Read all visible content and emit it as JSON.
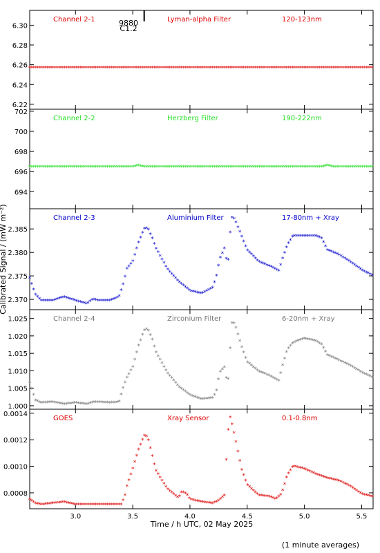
{
  "chart_data": {
    "type": "scatter",
    "xlabel": "Time / h UTC, 02 May 2025",
    "ylabel": "Calibrated Signal / (mW m⁻²)",
    "footnote": "(1 minute averages)",
    "xlim": [
      2.6,
      5.6
    ],
    "xticks": [
      3.0,
      3.5,
      4.0,
      4.5,
      5.0,
      5.5
    ],
    "xtick_labels": [
      "3.0",
      "3.5",
      "4.0",
      "4.5",
      "5.0",
      "5.5"
    ],
    "flare_marker": {
      "x": 3.6,
      "labels": [
        "9880",
        "C1.2"
      ]
    },
    "panels": [
      {
        "channel": "Channel 2-1",
        "filter": "Lyman-alpha Filter",
        "band": "120-123nm",
        "color": "#dd0000",
        "ylim": [
          6.215,
          6.315
        ],
        "yticks": [
          6.22,
          6.24,
          6.26,
          6.28,
          6.3
        ],
        "ytick_labels": [
          "6.22",
          "6.24",
          "6.26",
          "6.28",
          "6.30"
        ],
        "series_x": [
          2.6,
          5.6
        ],
        "series_y": [
          6.257,
          6.257
        ]
      },
      {
        "channel": "Channel 2-2",
        "filter": "Herzberg Filter",
        "band": "190-222nm",
        "color": "#22dd22",
        "ylim": [
          692.3,
          702.2
        ],
        "yticks": [
          694,
          696,
          698,
          700,
          702
        ],
        "ytick_labels": [
          "694",
          "696",
          "698",
          "700",
          "702"
        ],
        "series_x": [
          2.6,
          3.5,
          3.55,
          3.6,
          5.15,
          5.2,
          5.25,
          5.6
        ],
        "series_y": [
          696.45,
          696.45,
          696.6,
          696.45,
          696.45,
          696.6,
          696.45,
          696.45
        ]
      },
      {
        "channel": "Channel 2-3",
        "filter": "Aluminium Filter",
        "band": "17-80nm + Xray",
        "color": "#0000cc",
        "ylim": [
          2.3678,
          2.3893
        ],
        "yticks": [
          2.37,
          2.375,
          2.38,
          2.385
        ],
        "ytick_labels": [
          "2.370",
          "2.375",
          "2.380",
          "2.385"
        ],
        "series_x": [
          2.6,
          2.62,
          2.65,
          2.7,
          2.8,
          2.9,
          3.0,
          3.1,
          3.15,
          3.2,
          3.3,
          3.38,
          3.42,
          3.45,
          3.5,
          3.55,
          3.6,
          3.63,
          3.67,
          3.7,
          3.8,
          3.9,
          4.0,
          4.1,
          4.2,
          4.23,
          4.26,
          4.3,
          4.33,
          4.35,
          4.37,
          4.4,
          4.45,
          4.5,
          4.6,
          4.7,
          4.78,
          4.8,
          4.85,
          4.9,
          5.0,
          5.1,
          5.15,
          5.2,
          5.3,
          5.4,
          5.5,
          5.6
        ],
        "series_y": [
          2.3745,
          2.373,
          2.371,
          2.3697,
          2.3697,
          2.3705,
          2.3697,
          2.369,
          2.37,
          2.3697,
          2.3697,
          2.3705,
          2.3735,
          2.3765,
          2.378,
          2.382,
          2.385,
          2.3852,
          2.383,
          2.381,
          2.3765,
          2.3738,
          2.3718,
          2.3712,
          2.3725,
          2.3748,
          2.3785,
          2.3808,
          2.377,
          2.384,
          2.3878,
          2.3865,
          2.3835,
          2.3805,
          2.378,
          2.377,
          2.376,
          2.378,
          2.3815,
          2.3835,
          2.3835,
          2.3835,
          2.383,
          2.3805,
          2.3795,
          2.378,
          2.3762,
          2.375
        ]
      },
      {
        "channel": "Channel 2-4",
        "filter": "Zirconium Filter",
        "band": "6-20nm + Xray",
        "color": "#777777",
        "ylim": [
          0.999,
          1.0275
        ],
        "yticks": [
          1.0,
          1.005,
          1.01,
          1.015,
          1.02,
          1.025
        ],
        "ytick_labels": [
          "1.000",
          "1.005",
          "1.010",
          "1.015",
          "1.020",
          "1.025"
        ],
        "series_x": [
          2.6,
          2.63,
          2.65,
          2.7,
          2.8,
          2.9,
          3.0,
          3.1,
          3.15,
          3.2,
          3.3,
          3.38,
          3.42,
          3.45,
          3.5,
          3.55,
          3.6,
          3.63,
          3.67,
          3.7,
          3.8,
          3.9,
          4.0,
          4.1,
          4.2,
          4.23,
          4.26,
          4.3,
          4.33,
          4.35,
          4.37,
          4.4,
          4.45,
          4.5,
          4.6,
          4.7,
          4.78,
          4.8,
          4.85,
          4.9,
          5.0,
          5.1,
          5.15,
          5.2,
          5.3,
          5.4,
          5.5,
          5.6
        ],
        "series_y": [
          1.0065,
          1.0035,
          1.0015,
          1.0008,
          1.001,
          1.0004,
          1.0008,
          1.0004,
          1.001,
          1.001,
          1.0008,
          1.001,
          1.0055,
          1.008,
          1.011,
          1.017,
          1.0215,
          1.022,
          1.019,
          1.0155,
          1.0095,
          1.0055,
          1.003,
          1.0018,
          1.0022,
          1.004,
          1.0095,
          1.011,
          1.0055,
          1.016,
          1.0245,
          1.0225,
          1.017,
          1.0125,
          1.0098,
          1.0085,
          1.007,
          1.0105,
          1.016,
          1.018,
          1.0192,
          1.0185,
          1.0175,
          1.0145,
          1.013,
          1.0115,
          1.0095,
          1.008
        ]
      },
      {
        "channel": "GOES",
        "filter": "Xray Sensor",
        "band": "0.1-0.8nm",
        "color": "#dd0000",
        "ylim": [
          0.00068,
          0.00143
        ],
        "yticks": [
          0.0008,
          0.001,
          0.0012,
          0.0014
        ],
        "ytick_labels": [
          "0.0008",
          "0.0010",
          "0.0012",
          "0.0014"
        ],
        "series_x": [
          2.6,
          2.65,
          2.7,
          2.8,
          2.9,
          3.0,
          3.1,
          3.2,
          3.3,
          3.4,
          3.43,
          3.45,
          3.5,
          3.55,
          3.6,
          3.63,
          3.67,
          3.7,
          3.8,
          3.9,
          3.93,
          3.97,
          4.0,
          4.1,
          4.2,
          4.25,
          4.3,
          4.33,
          4.35,
          4.37,
          4.4,
          4.45,
          4.5,
          4.6,
          4.7,
          4.75,
          4.8,
          4.85,
          4.9,
          5.0,
          5.1,
          5.2,
          5.3,
          5.4,
          5.5,
          5.6
        ],
        "series_y": [
          0.00075,
          0.00072,
          0.00071,
          0.00072,
          0.00073,
          0.00071,
          0.00071,
          0.00071,
          0.00071,
          0.00071,
          0.00077,
          0.00085,
          0.00098,
          0.00112,
          0.00123,
          0.00122,
          0.00108,
          0.00097,
          0.00083,
          0.00076,
          0.00081,
          0.00079,
          0.00075,
          0.00073,
          0.00072,
          0.00074,
          0.00078,
          0.00125,
          0.00137,
          0.00131,
          0.00119,
          0.00098,
          0.00086,
          0.00078,
          0.00077,
          0.00075,
          0.00079,
          0.00093,
          0.001,
          0.00098,
          0.00094,
          0.00091,
          0.00089,
          0.00085,
          0.00079,
          0.00077
        ]
      }
    ]
  }
}
